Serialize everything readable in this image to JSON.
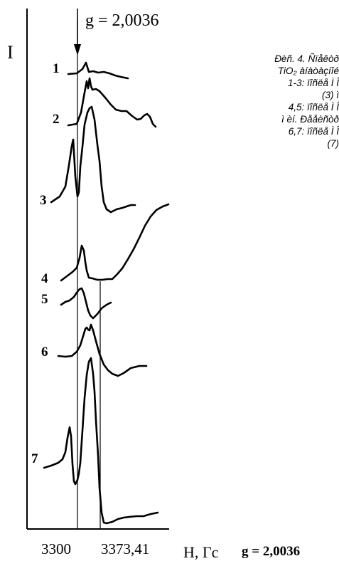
{
  "figure": {
    "g_marker": "g = 2,0036",
    "y_axis_label": "I",
    "x_axis_label": "H, Гс",
    "x_ticks": [
      "3300",
      "3373,41"
    ],
    "spectrum_labels": [
      "1",
      "2",
      "3",
      "4",
      "5",
      "6",
      "7"
    ]
  },
  "caption": {
    "lines": [
      "Ðèñ. 4. Ñïåêòð",
      "TiO₂ àíàòàçíîé",
      "1-3: ïîñëå Ì Î",
      "(3) ì",
      "4,5: ïîñëå Ì Î",
      "ì èí. Ðååèñòð",
      "6,7: ïîñëå Ì Î",
      "(7)"
    ]
  },
  "footer": {
    "g_value": "g = 2,0036"
  }
}
